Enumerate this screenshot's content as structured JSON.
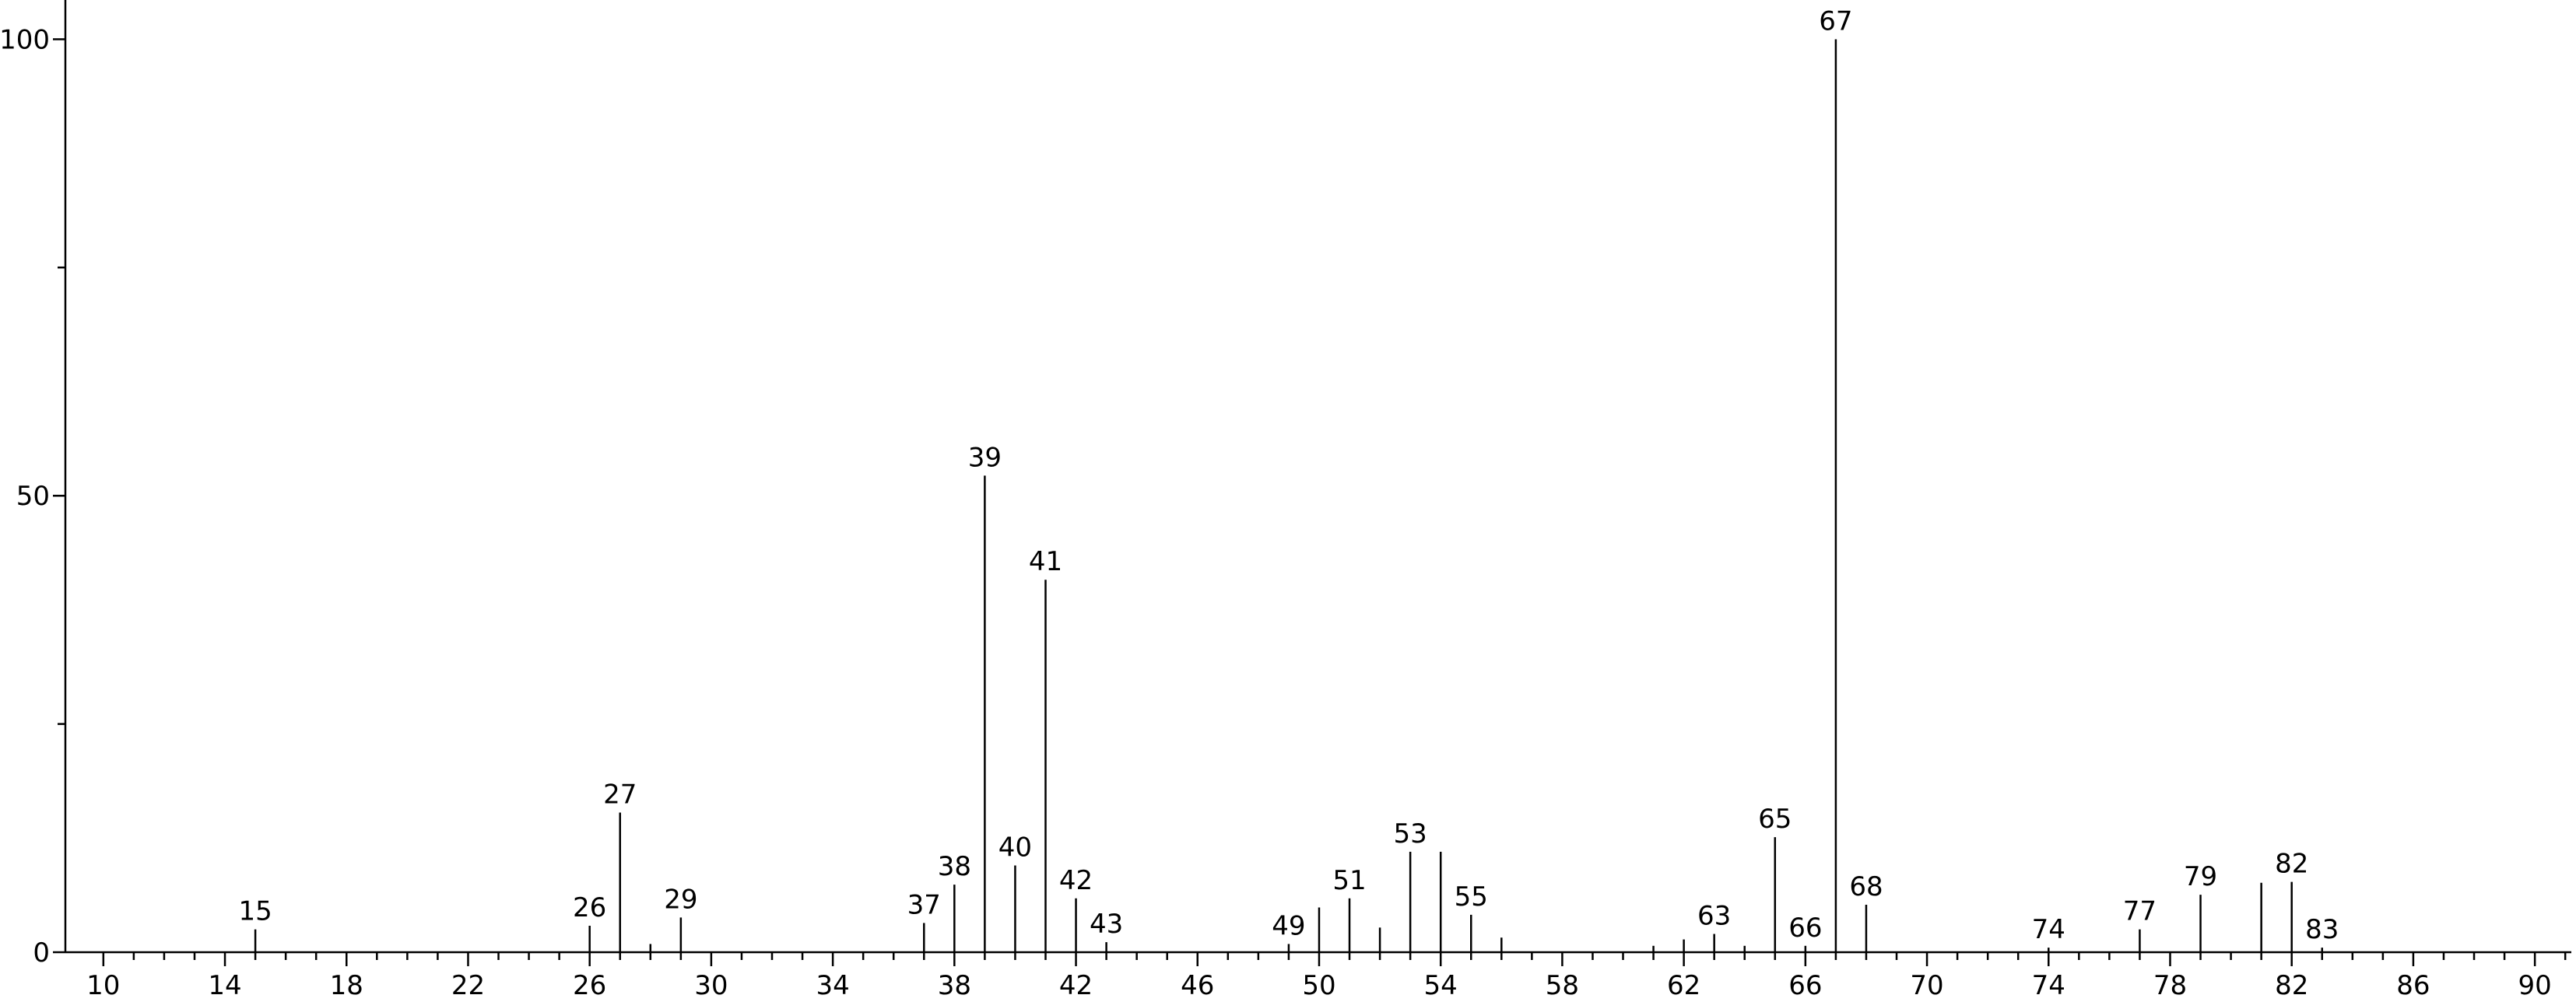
{
  "chart_data": {
    "type": "stick",
    "x": [
      15,
      26,
      27,
      28,
      29,
      37,
      38,
      39,
      40,
      41,
      42,
      43,
      49,
      50,
      51,
      52,
      53,
      54,
      55,
      56,
      61,
      62,
      63,
      64,
      65,
      66,
      67,
      68,
      74,
      77,
      79,
      81,
      82,
      83
    ],
    "values": [
      2.5,
      2.9,
      15.3,
      0.9,
      3.8,
      3.2,
      7.4,
      52.2,
      9.5,
      40.8,
      5.9,
      1.1,
      0.9,
      4.9,
      5.9,
      2.7,
      11.0,
      11.0,
      4.1,
      1.6,
      0.7,
      1.4,
      2.0,
      0.7,
      12.6,
      0.7,
      100,
      5.2,
      0.5,
      2.5,
      6.3,
      7.6,
      7.7,
      0.5
    ],
    "labeled": [
      true,
      true,
      true,
      false,
      true,
      true,
      true,
      true,
      true,
      true,
      true,
      true,
      true,
      false,
      true,
      false,
      true,
      false,
      true,
      false,
      false,
      false,
      true,
      false,
      true,
      true,
      true,
      true,
      true,
      true,
      true,
      false,
      true,
      true
    ],
    "color": "#000000",
    "xlim": [
      8.75,
      91.2
    ],
    "xticks": [
      10,
      14,
      18,
      22,
      26,
      30,
      34,
      38,
      42,
      46,
      50,
      54,
      58,
      62,
      66,
      70,
      74,
      78,
      82,
      86,
      90
    ],
    "xminorticks": [
      11,
      12,
      13,
      15,
      16,
      17,
      19,
      20,
      21,
      23,
      24,
      25,
      27,
      28,
      29,
      31,
      32,
      33,
      35,
      36,
      37,
      39,
      40,
      41,
      43,
      44,
      45,
      47,
      48,
      49,
      51,
      52,
      53,
      55,
      56,
      57,
      59,
      60,
      61,
      63,
      64,
      65,
      67,
      68,
      69,
      71,
      72,
      73,
      75,
      76,
      77,
      79,
      80,
      81,
      83,
      84,
      85,
      87,
      88,
      89,
      91
    ],
    "ylim": [
      0,
      104.3
    ],
    "yticks": [
      0,
      50,
      100
    ],
    "yminorticks": [
      25,
      75
    ]
  }
}
